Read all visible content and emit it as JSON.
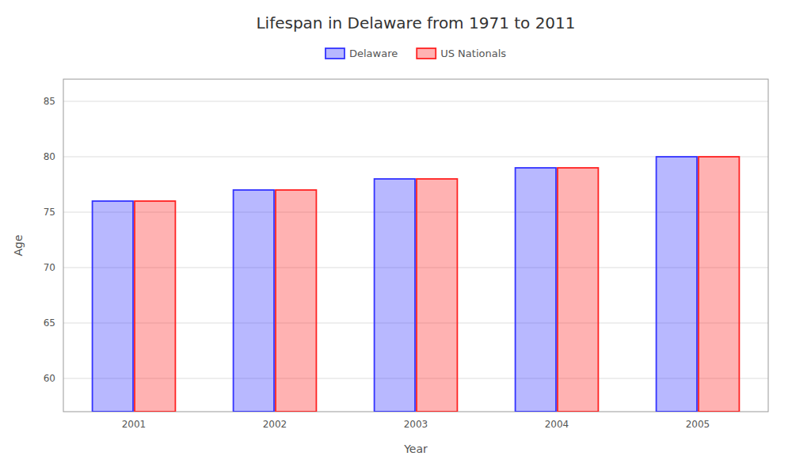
{
  "chart_data": {
    "type": "bar",
    "title": "Lifespan in Delaware from 1971 to 2011",
    "xlabel": "Year",
    "ylabel": "Age",
    "categories": [
      "2001",
      "2002",
      "2003",
      "2004",
      "2005"
    ],
    "series": [
      {
        "name": "Delaware",
        "color": "#3333ff",
        "values": [
          76,
          77,
          78,
          79,
          80
        ]
      },
      {
        "name": "US Nationals",
        "color": "#ff2222",
        "values": [
          76,
          77,
          78,
          79,
          80
        ]
      }
    ],
    "ylim": [
      57,
      87
    ],
    "yticks": [
      60,
      65,
      70,
      75,
      80,
      85
    ],
    "grid": true,
    "legend": "top"
  }
}
